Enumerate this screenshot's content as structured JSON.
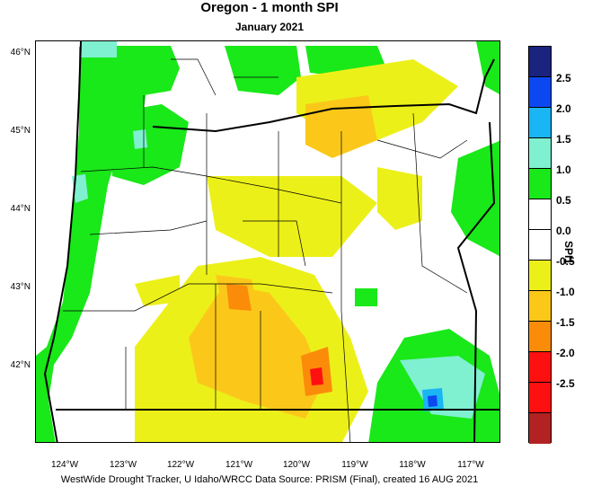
{
  "title": "Oregon - 1 month SPI",
  "subtitle": "January 2021",
  "footer": "WestWide Drought Tracker, U Idaho/WRCC Data Source: PRISM (Final), created 16 AUG 2021",
  "legend": {
    "title": "SPI1",
    "bins": [
      {
        "label": "2.5",
        "color": "#1a237e"
      },
      {
        "label": "2.0",
        "color": "#0d47f0"
      },
      {
        "label": "1.5",
        "color": "#19b5f5"
      },
      {
        "label": "1.0",
        "color": "#7ff0d0"
      },
      {
        "label": "0.5",
        "color": "#19e819"
      },
      {
        "label": "0.0",
        "color": "#ffffff"
      },
      {
        "label": "-0.5",
        "color": "#ffffff"
      },
      {
        "label": "-1.0",
        "color": "#ecf019"
      },
      {
        "label": "-1.5",
        "color": "#fbc81a"
      },
      {
        "label": "-2.0",
        "color": "#fb8c0a"
      },
      {
        "label": "-2.5",
        "color": "#ff1010"
      },
      {
        "label": "",
        "color": "#ff1010"
      },
      {
        "label": "",
        "color": "#b22222"
      }
    ]
  },
  "lat_ticks": [
    "46°N",
    "45°N",
    "44°N",
    "43°N",
    "42°N"
  ],
  "lon_ticks": [
    "124°W",
    "123°W",
    "122°W",
    "121°W",
    "120°W",
    "119°W",
    "118°W",
    "117°W"
  ],
  "colors": {
    "green": "#19e819",
    "aqua": "#7ff0d0",
    "sky": "#19b5f5",
    "blue": "#0d47f0",
    "yellow": "#ecf019",
    "orange": "#fbc81a",
    "darkorange": "#fb8c0a",
    "red": "#ff1010"
  }
}
